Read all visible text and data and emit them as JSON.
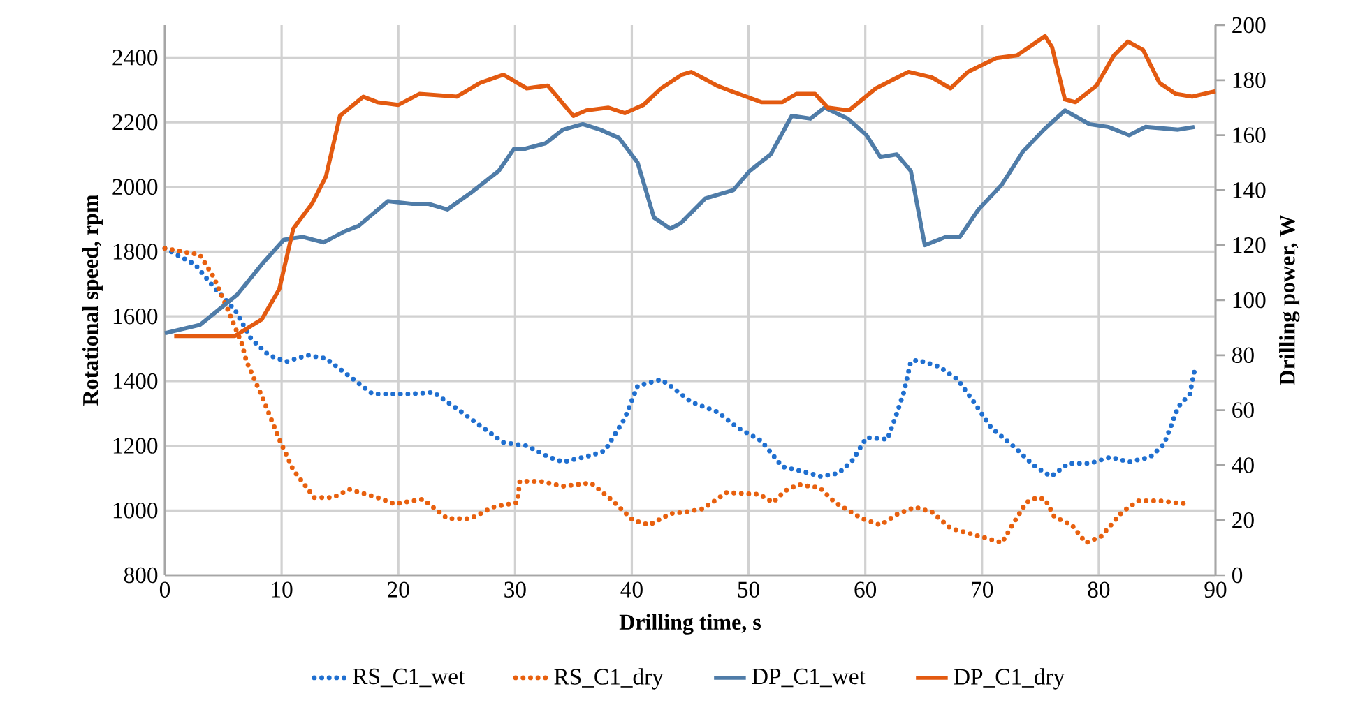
{
  "chart_data": {
    "type": "line",
    "xlabel": "Drilling time, s",
    "ylabel": "Rotational speed, rpm",
    "y2label": "Drilling power, W",
    "xlim": [
      0,
      90
    ],
    "xticks": [
      0,
      10,
      20,
      30,
      40,
      50,
      60,
      70,
      80,
      90
    ],
    "ylim": [
      800,
      2500
    ],
    "yticks": [
      800,
      1000,
      1200,
      1400,
      1600,
      1800,
      2000,
      2200,
      2400
    ],
    "y2lim": [
      0,
      200
    ],
    "y2ticks": [
      0,
      20,
      40,
      60,
      80,
      100,
      120,
      140,
      160,
      180,
      200
    ],
    "grid": true,
    "legend": "bottom",
    "marker": "none",
    "series": [
      {
        "name": "RS_C1_wet",
        "color": "#1f6fd0",
        "line_style": "dotted",
        "x": [
          0,
          2.6,
          4.2,
          6,
          7.4,
          8.9,
          10.4,
          12.2,
          13.8,
          15.8,
          17.8,
          21,
          23,
          25,
          26.9,
          29,
          31,
          32.9,
          34.1,
          36.5,
          37.7,
          39.4,
          40.5,
          42.5,
          43.3,
          45.1,
          47.3,
          49.1,
          51.1,
          52.9,
          54.7,
          56.2,
          57.7,
          58.9,
          60.1,
          61.9,
          62.7,
          63.3,
          63.9,
          64.5,
          66.3,
          67.9,
          69.3,
          70.8,
          72.8,
          74.4,
          75.9,
          77.4,
          79.2,
          81,
          82.6,
          84.4,
          85.6,
          86.8,
          87.8,
          88.3
        ],
        "values": [
          1810,
          1760,
          1690,
          1620,
          1530,
          1480,
          1460,
          1480,
          1470,
          1415,
          1360,
          1360,
          1365,
          1315,
          1265,
          1210,
          1200,
          1165,
          1150,
          1170,
          1185,
          1285,
          1385,
          1405,
          1385,
          1335,
          1305,
          1255,
          1215,
          1135,
          1120,
          1105,
          1115,
          1155,
          1225,
          1220,
          1300,
          1365,
          1460,
          1465,
          1445,
          1405,
          1335,
          1255,
          1195,
          1140,
          1105,
          1145,
          1145,
          1165,
          1150,
          1165,
          1205,
          1320,
          1360,
          1450
        ]
      },
      {
        "name": "RS_C1_dry",
        "color": "#e8600e",
        "line_style": "dotted",
        "x": [
          0,
          3,
          4.2,
          5.4,
          6.6,
          7,
          8.4,
          9.8,
          11,
          12.8,
          14.4,
          15.8,
          18.2,
          19.7,
          22.1,
          24.2,
          26.2,
          28.1,
          30.2,
          30.4,
          32.2,
          34.1,
          36.5,
          38.2,
          40.1,
          41.5,
          43.3,
          44.5,
          46.1,
          48.1,
          50.9,
          52.1,
          53.1,
          54.3,
          56.1,
          57.4,
          59.7,
          61.3,
          62.8,
          64.3,
          65.7,
          67.3,
          69.3,
          70.8,
          71.7,
          72.6,
          73.8,
          74.7,
          75.4,
          76.2,
          77.7,
          78.9,
          80.2,
          82,
          83.4,
          85.2,
          87.6
        ],
        "values": [
          1810,
          1790,
          1720,
          1620,
          1515,
          1460,
          1345,
          1220,
          1125,
          1040,
          1040,
          1065,
          1040,
          1020,
          1035,
          975,
          975,
          1010,
          1025,
          1090,
          1090,
          1075,
          1085,
          1035,
          970,
          955,
          990,
          995,
          1005,
          1055,
          1050,
          1025,
          1060,
          1080,
          1070,
          1025,
          975,
          955,
          990,
          1010,
          995,
          945,
          925,
          910,
          900,
          955,
          1025,
          1040,
          1035,
          980,
          955,
          900,
          920,
          995,
          1030,
          1030,
          1020
        ]
      },
      {
        "name": "DP_C1_wet",
        "color": "#4f7ca8",
        "line_style": "solid",
        "axis": "y2",
        "x": [
          0,
          3,
          6.2,
          8.3,
          10.2,
          11.8,
          13.6,
          15.4,
          16.6,
          19.1,
          21.2,
          22.6,
          24.2,
          26.2,
          28.6,
          29.9,
          30.8,
          32.6,
          34.1,
          35.8,
          37.3,
          38.9,
          40.5,
          41.9,
          43.3,
          44.2,
          46.3,
          48.7,
          50.1,
          51.9,
          53.7,
          55.3,
          56.5,
          58.5,
          60.1,
          61.3,
          62.7,
          63.9,
          65.1,
          66.9,
          68.1,
          69.7,
          71.7,
          73.5,
          75.3,
          77.1,
          79.2,
          80.8,
          82.6,
          84,
          86.8,
          88.2
        ],
        "values": [
          88,
          91,
          102,
          113,
          122,
          123,
          121,
          125,
          127,
          136,
          135,
          135,
          133,
          139,
          147,
          155,
          155,
          157,
          162,
          164,
          162,
          159,
          150,
          130,
          126,
          128,
          137,
          140,
          147,
          153,
          167,
          166,
          170,
          166,
          160,
          152,
          153,
          147,
          120,
          123,
          123,
          133,
          142,
          154,
          162,
          169,
          164,
          163,
          160,
          163,
          162,
          163
        ]
      },
      {
        "name": "DP_C1_dry",
        "color": "#e35a10",
        "line_style": "solid",
        "axis": "y2",
        "x": [
          0.8,
          6,
          8.3,
          9.8,
          11,
          12.6,
          13.8,
          15,
          17,
          18.2,
          20,
          21.8,
          25,
          27,
          29,
          31,
          32.8,
          35,
          36.1,
          38,
          39.4,
          41,
          42.5,
          44.3,
          45.1,
          47.3,
          48.5,
          51.1,
          52.9,
          54.1,
          55.7,
          56.8,
          58.6,
          60.9,
          63.7,
          65.7,
          67.3,
          68.8,
          71.2,
          73,
          75.4,
          76,
          77.1,
          78,
          79.8,
          81.3,
          82.5,
          83.8,
          85.2,
          86.6,
          88,
          90
        ],
        "values": [
          87,
          87,
          93,
          104,
          126,
          135,
          145,
          167,
          174,
          172,
          171,
          175,
          174,
          179,
          182,
          177,
          178,
          167,
          169,
          170,
          168,
          171,
          177,
          182,
          183,
          178,
          176,
          172,
          172,
          175,
          175,
          170,
          169,
          177,
          183,
          181,
          177,
          183,
          188,
          189,
          196,
          192,
          173,
          172,
          178,
          189,
          194,
          191,
          179,
          175,
          174,
          176
        ]
      }
    ]
  }
}
